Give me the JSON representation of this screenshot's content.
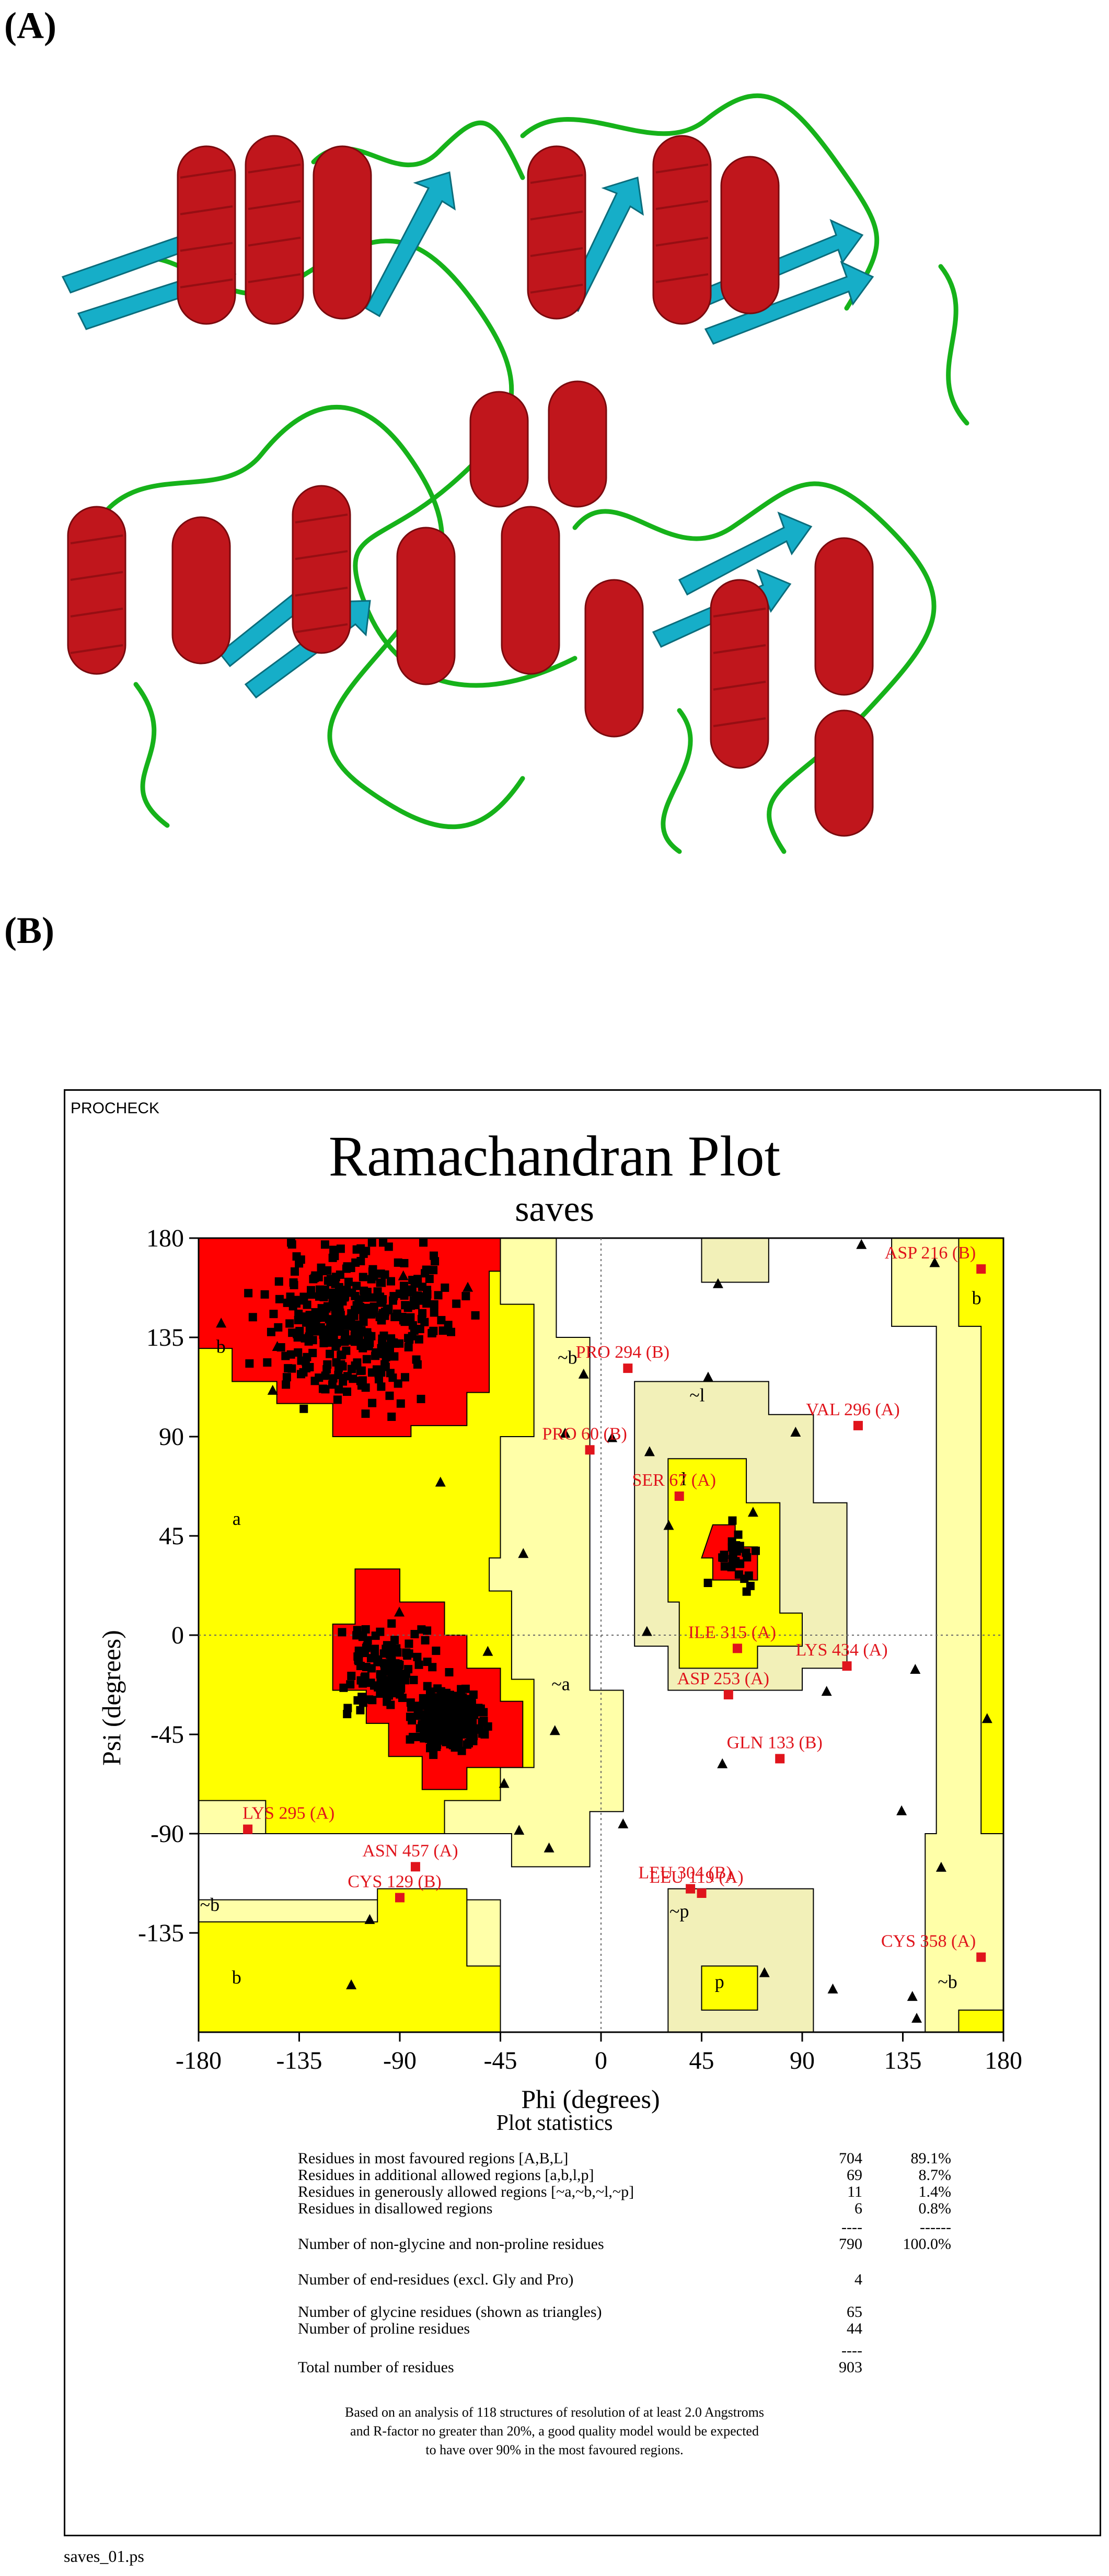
{
  "panels": {
    "a": "(A)",
    "b": "(B)"
  },
  "structure_image": {
    "helix_color": "#c0161c",
    "sheet_color": "#16aec8",
    "loop_color": "#16b21a"
  },
  "report": {
    "program": "PROCHECK",
    "title": "Ramachandran Plot",
    "subtitle": "saves",
    "filename": "saves_01.ps"
  },
  "chart_data": {
    "type": "scatter",
    "title": "Ramachandran Plot",
    "subtitle": "saves",
    "xlabel": "Phi (degrees)",
    "ylabel": "Psi (degrees)",
    "xlim": [
      -180,
      180
    ],
    "ylim": [
      -180,
      180
    ],
    "xticks": [
      -180,
      -135,
      -90,
      -45,
      0,
      45,
      90,
      135,
      180
    ],
    "yticks": [
      180,
      135,
      90,
      45,
      0,
      -45,
      -90,
      -135
    ],
    "colors": {
      "core": "#ff0000",
      "allowed": "#ffff00",
      "generous": "#ffffa8",
      "generous_beige": "#f2f0b8",
      "outlier": "#e0141c",
      "points": "#000000"
    },
    "region_labels": [
      {
        "text": "b",
        "phi": -170,
        "psi": 128
      },
      {
        "text": "~b",
        "phi": -15,
        "psi": 123
      },
      {
        "text": "~l",
        "phi": 43,
        "psi": 106
      },
      {
        "text": "l",
        "phi": 37,
        "psi": 68
      },
      {
        "text": "a",
        "phi": -163,
        "psi": 50
      },
      {
        "text": "~a",
        "phi": -18,
        "psi": -25
      },
      {
        "text": "~b",
        "phi": -175,
        "psi": -125
      },
      {
        "text": "b",
        "phi": -163,
        "psi": -158
      },
      {
        "text": "~p",
        "phi": 35,
        "psi": -128
      },
      {
        "text": "p",
        "phi": 53,
        "psi": -160
      },
      {
        "text": "~b",
        "phi": 155,
        "psi": -160
      },
      {
        "text": "b",
        "phi": 168,
        "psi": 150
      }
    ],
    "outliers": [
      {
        "label": "ASP 216 (B)",
        "phi": 170,
        "psi": 166
      },
      {
        "label": "PRO 294 (B)",
        "phi": 12,
        "psi": 121
      },
      {
        "label": "VAL 296 (A)",
        "phi": 115,
        "psi": 95
      },
      {
        "label": "PRO 60 (B)",
        "phi": -5,
        "psi": 84
      },
      {
        "label": "SER 67 (A)",
        "phi": 35,
        "psi": 63
      },
      {
        "label": "ILE 315 (A)",
        "phi": 61,
        "psi": -6
      },
      {
        "label": "LYS 434 (A)",
        "phi": 110,
        "psi": -14
      },
      {
        "label": "ASP 253 (A)",
        "phi": 57,
        "psi": -27
      },
      {
        "label": "GLN 133 (B)",
        "phi": 80,
        "psi": -56
      },
      {
        "label": "LYS 295 (A)",
        "phi": -158,
        "psi": -88
      },
      {
        "label": "ASN 457 (A)",
        "phi": -83,
        "psi": -105
      },
      {
        "label": "CYS 129 (B)",
        "phi": -90,
        "psi": -119
      },
      {
        "label": "LEU 304 (B)",
        "phi": 40,
        "psi": -115
      },
      {
        "label": "LEU 119 (A)",
        "phi": 45,
        "psi": -117
      },
      {
        "label": "CYS 358 (A)",
        "phi": 170,
        "psi": -146
      }
    ]
  },
  "statistics": {
    "title": "Plot statistics",
    "rows": [
      {
        "label": "Residues in most favoured regions  [A,B,L]",
        "count": "704",
        "pct": "89.1%"
      },
      {
        "label": "Residues in additional allowed regions  [a,b,l,p]",
        "count": "69",
        "pct": "8.7%"
      },
      {
        "label": "Residues in generously allowed regions  [~a,~b,~l,~p]",
        "count": "11",
        "pct": "1.4%"
      },
      {
        "label": "Residues in disallowed regions",
        "count": "6",
        "pct": "0.8%"
      },
      {
        "label": "",
        "count": "----",
        "pct": "------"
      },
      {
        "label": "Number of non-glycine and non-proline residues",
        "count": "790",
        "pct": "100.0%"
      },
      {
        "label": "Number of end-residues (excl. Gly and Pro)",
        "count": "4",
        "pct": ""
      },
      {
        "label": "Number of glycine residues (shown as triangles)",
        "count": "65",
        "pct": ""
      },
      {
        "label": "Number of proline residues",
        "count": "44",
        "pct": ""
      },
      {
        "label": "",
        "count": "----",
        "pct": ""
      },
      {
        "label": "Total number of residues",
        "count": "903",
        "pct": ""
      }
    ],
    "note": [
      "Based on an analysis of 118 structures of resolution of at least 2.0 Angstroms",
      "and R-factor no greater than 20%, a good quality model would be expected",
      "to have over 90% in the most favoured regions."
    ]
  }
}
